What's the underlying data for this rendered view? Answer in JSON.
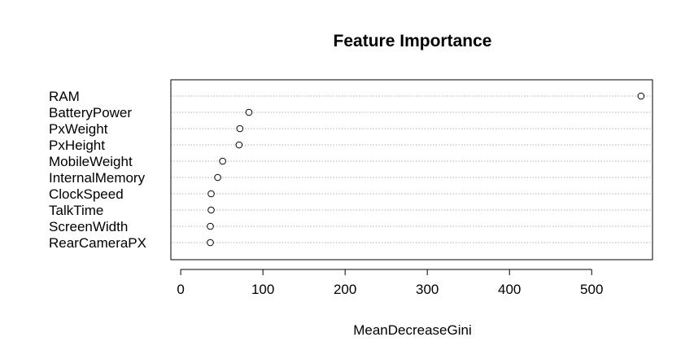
{
  "chart_data": {
    "type": "scatter",
    "title": "Feature Importance",
    "xlabel": "MeanDecreaseGini",
    "ylabel": "",
    "xlim": [
      -12,
      574
    ],
    "xticks": [
      0,
      100,
      200,
      300,
      400,
      500
    ],
    "grid": "horizontal dotted",
    "categories": [
      "RAM",
      "BatteryPower",
      "PxWeight",
      "PxHeight",
      "MobileWeight",
      "InternalMemory",
      "ClockSpeed",
      "TalkTime",
      "ScreenWidth",
      "RearCameraPX"
    ],
    "values": [
      560,
      83,
      72,
      71,
      51,
      45,
      37,
      37,
      36,
      36
    ]
  }
}
